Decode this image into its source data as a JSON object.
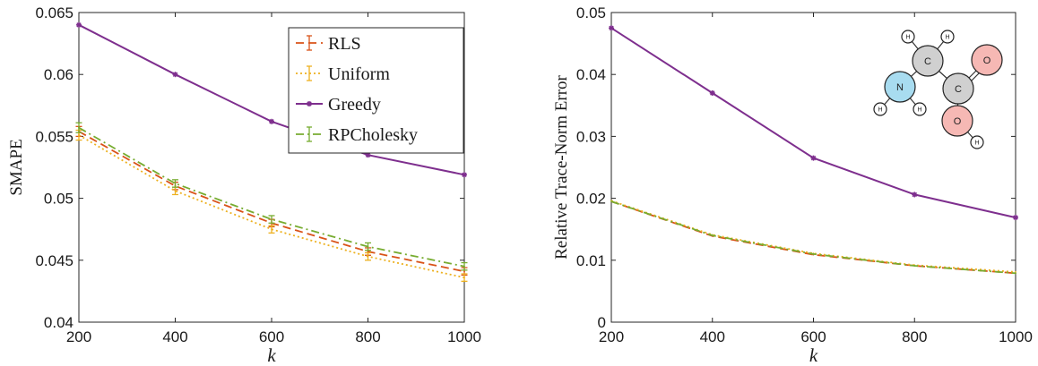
{
  "colors": {
    "RLS": "#d95319",
    "Uniform": "#edb120",
    "Greedy": "#7e2f8e",
    "RPCholesky": "#77ac30",
    "atom_C": "#d0d0d0",
    "atom_N": "#a8dcf0",
    "atom_O": "#f6b8b4",
    "atom_H": "#ffffff"
  },
  "molecule": {
    "atoms": [
      {
        "label": "C"
      },
      {
        "label": "C"
      },
      {
        "label": "N"
      },
      {
        "label": "O"
      },
      {
        "label": "O"
      },
      {
        "label": "H"
      },
      {
        "label": "H"
      },
      {
        "label": "H"
      },
      {
        "label": "H"
      },
      {
        "label": "H"
      }
    ]
  },
  "chart_data": [
    {
      "type": "line",
      "xlabel": "k",
      "ylabel": "SMAPE",
      "xlim": [
        200,
        1000
      ],
      "ylim": [
        0.04,
        0.065
      ],
      "xticks": [
        "200",
        "400",
        "600",
        "800",
        "1000"
      ],
      "yticks": [
        "0.04",
        "0.045",
        "0.05",
        "0.055",
        "0.06",
        "0.065"
      ],
      "x": [
        200,
        400,
        600,
        800,
        1000
      ],
      "legend": {
        "placement": "top-right",
        "entries": [
          "RLS",
          "Uniform",
          "Greedy",
          "RPCholesky"
        ]
      },
      "series": [
        {
          "name": "RLS",
          "values": [
            0.0554,
            0.051,
            0.048,
            0.0457,
            0.0441
          ],
          "errors": [
            0.0004,
            0.0003,
            0.0003,
            0.0003,
            0.0003
          ]
        },
        {
          "name": "Uniform",
          "values": [
            0.0551,
            0.0506,
            0.0475,
            0.0453,
            0.0436
          ],
          "errors": [
            0.0004,
            0.0003,
            0.0003,
            0.0003,
            0.0003
          ]
        },
        {
          "name": "Greedy",
          "values": [
            0.064,
            0.06,
            0.0562,
            0.0535,
            0.0519
          ]
        },
        {
          "name": "RPCholesky",
          "values": [
            0.0557,
            0.0512,
            0.0483,
            0.0461,
            0.0445
          ],
          "errors": [
            0.0004,
            0.0003,
            0.0003,
            0.0003,
            0.0003
          ]
        }
      ]
    },
    {
      "type": "line",
      "xlabel": "k",
      "ylabel": "Relative Trace-Norm Error",
      "xlim": [
        200,
        1000
      ],
      "ylim": [
        0,
        0.05
      ],
      "xticks": [
        "200",
        "400",
        "600",
        "800",
        "1000"
      ],
      "yticks": [
        "0",
        "0.01",
        "0.02",
        "0.03",
        "0.04",
        "0.05"
      ],
      "x": [
        200,
        400,
        600,
        800,
        1000
      ],
      "series": [
        {
          "name": "RLS",
          "values": [
            0.0195,
            0.0139,
            0.0109,
            0.0091,
            0.0079
          ]
        },
        {
          "name": "Uniform",
          "values": [
            0.0196,
            0.0141,
            0.0111,
            0.0092,
            0.0081
          ]
        },
        {
          "name": "Greedy",
          "values": [
            0.0475,
            0.037,
            0.0265,
            0.0206,
            0.0169
          ]
        },
        {
          "name": "RPCholesky",
          "values": [
            0.0195,
            0.014,
            0.011,
            0.0091,
            0.0079
          ]
        }
      ]
    }
  ]
}
